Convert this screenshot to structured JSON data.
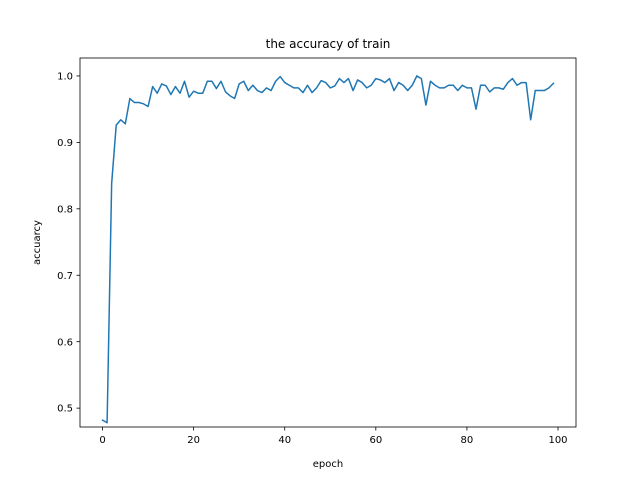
{
  "chart_data": {
    "type": "line",
    "title": "the accuracy of train",
    "xlabel": "epoch",
    "ylabel": "accuarcy",
    "xlim": [
      -4.95,
      103.95
    ],
    "ylim": [
      0.4716,
      1.027
    ],
    "xticks": [
      0,
      20,
      40,
      60,
      80,
      100
    ],
    "yticks": [
      0.5,
      0.6,
      0.7,
      0.8,
      0.9,
      1.0
    ],
    "xtick_labels": [
      "0",
      "20",
      "40",
      "60",
      "80",
      "100"
    ],
    "ytick_labels": [
      "0.5",
      "0.6",
      "0.7",
      "0.8",
      "0.9",
      "1.0"
    ],
    "grid": false,
    "line_color": "#1f77b4",
    "series": [
      {
        "name": "",
        "x": [
          0,
          1,
          2,
          3,
          4,
          5,
          6,
          7,
          8,
          9,
          10,
          11,
          12,
          13,
          14,
          15,
          16,
          17,
          18,
          19,
          20,
          21,
          22,
          23,
          24,
          25,
          26,
          27,
          28,
          29,
          30,
          31,
          32,
          33,
          34,
          35,
          36,
          37,
          38,
          39,
          40,
          41,
          42,
          43,
          44,
          45,
          46,
          47,
          48,
          49,
          50,
          51,
          52,
          53,
          54,
          55,
          56,
          57,
          58,
          59,
          60,
          61,
          62,
          63,
          64,
          65,
          66,
          67,
          68,
          69,
          70,
          71,
          72,
          73,
          74,
          75,
          76,
          77,
          78,
          79,
          80,
          81,
          82,
          83,
          84,
          85,
          86,
          87,
          88,
          89,
          90,
          91,
          92,
          93,
          94,
          95,
          96,
          97,
          98,
          99
        ],
        "y": [
          0.482,
          0.478,
          0.838,
          0.926,
          0.934,
          0.928,
          0.966,
          0.96,
          0.96,
          0.958,
          0.954,
          0.984,
          0.974,
          0.988,
          0.985,
          0.972,
          0.984,
          0.974,
          0.992,
          0.968,
          0.977,
          0.974,
          0.974,
          0.992,
          0.992,
          0.981,
          0.992,
          0.976,
          0.97,
          0.966,
          0.988,
          0.992,
          0.978,
          0.986,
          0.978,
          0.975,
          0.982,
          0.978,
          0.992,
          0.999,
          0.99,
          0.986,
          0.982,
          0.982,
          0.975,
          0.986,
          0.975,
          0.982,
          0.993,
          0.99,
          0.982,
          0.985,
          0.996,
          0.99,
          0.996,
          0.978,
          0.994,
          0.99,
          0.982,
          0.986,
          0.996,
          0.994,
          0.99,
          0.996,
          0.978,
          0.99,
          0.986,
          0.978,
          0.986,
          1.0,
          0.996,
          0.956,
          0.992,
          0.986,
          0.982,
          0.982,
          0.986,
          0.986,
          0.978,
          0.986,
          0.982,
          0.982,
          0.95,
          0.986,
          0.986,
          0.976,
          0.982,
          0.982,
          0.98,
          0.99,
          0.996,
          0.986,
          0.99,
          0.99,
          0.934,
          0.978,
          0.978,
          0.978,
          0.982,
          0.989
        ]
      }
    ]
  }
}
